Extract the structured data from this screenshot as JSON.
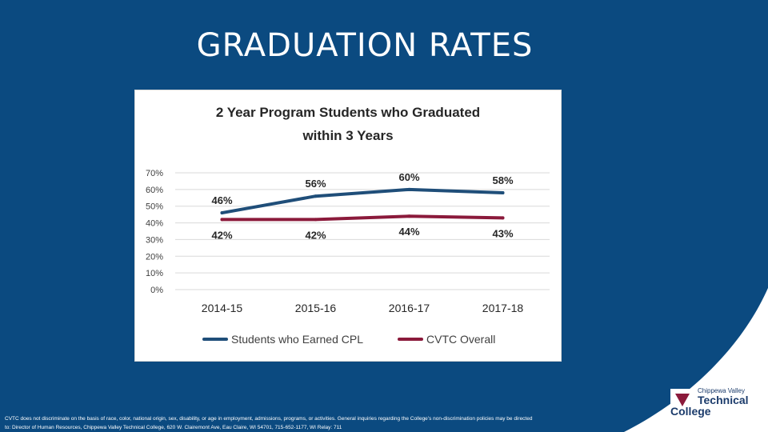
{
  "slide": {
    "title": "GRADUATION RATES",
    "disclaimer": "CVTC does not discriminate on the basis of race, color, national origin, sex, disability, or age in employment, admissions, programs, or activities. General inquiries regarding the College’s non-discrimination policies may be directed to: Director of Human Resources, Chippewa Valley Technical College, 620 W. Clairemont Ave, Eau Claire, WI 54701, 715-652-1177, WI Relay: 711"
  },
  "logo": {
    "line1": "Chippewa Valley",
    "line2": "Technical",
    "line3": "College"
  },
  "colors": {
    "background": "#0b4a80",
    "series_cpl": "#1f4e79",
    "series_overall": "#8b1a3b",
    "logo_accent": "#8b1a3b"
  },
  "chart_data": {
    "type": "line",
    "title_line1": "2 Year Program Students who Graduated",
    "title_line2": "within 3 Years",
    "categories": [
      "2014-15",
      "2015-16",
      "2016-17",
      "2017-18"
    ],
    "y_ticks": [
      "0%",
      "10%",
      "20%",
      "30%",
      "40%",
      "50%",
      "60%",
      "70%"
    ],
    "ylim": [
      0,
      70
    ],
    "grid": true,
    "legend_position": "bottom",
    "series": [
      {
        "name": "Students who Earned CPL",
        "values": [
          46,
          56,
          60,
          58
        ],
        "labels": [
          "46%",
          "56%",
          "60%",
          "58%"
        ],
        "color": "#1f4e79"
      },
      {
        "name": "CVTC Overall",
        "values": [
          42,
          42,
          44,
          43
        ],
        "labels": [
          "42%",
          "42%",
          "44%",
          "43%"
        ],
        "color": "#8b1a3b"
      }
    ]
  }
}
